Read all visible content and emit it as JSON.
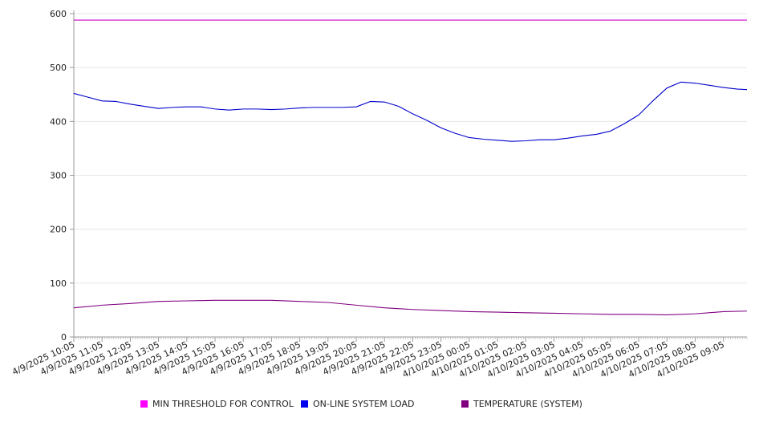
{
  "chart_data": {
    "type": "line",
    "title": "",
    "xlabel": "",
    "ylabel": "",
    "ylim": [
      0,
      600
    ],
    "yticks": [
      0,
      100,
      200,
      300,
      400,
      500,
      600
    ],
    "grid": true,
    "legend_position": "bottom",
    "x_tick_labels": [
      "4/9/2025 10:05",
      "4/9/2025 11:05",
      "4/9/2025 12:05",
      "4/9/2025 13:05",
      "4/9/2025 14:05",
      "4/9/2025 15:05",
      "4/9/2025 16:05",
      "4/9/2025 17:05",
      "4/9/2025 18:05",
      "4/9/2025 19:05",
      "4/9/2025 20:05",
      "4/9/2025 21:05",
      "4/9/2025 22:05",
      "4/9/2025 23:05",
      "4/10/2025 00:05",
      "4/10/2025 01:05",
      "4/10/2025 02:05",
      "4/10/2025 03:05",
      "4/10/2025 04:05",
      "4/10/2025 05:05",
      "4/10/2025 06:05",
      "4/10/2025 07:05",
      "4/10/2025 08:05",
      "4/10/2025 09:05"
    ],
    "x_time_range": [
      "4/9/2025 10:05",
      "4/10/2025 09:55"
    ],
    "series": [
      {
        "name": "MIN THRESHOLD FOR CONTROL",
        "color": "#cc00cc",
        "points": [
          [
            "4/9/2025 10:05",
            588
          ],
          [
            "4/10/2025 09:55",
            588
          ]
        ]
      },
      {
        "name": "ON-LINE SYSTEM LOAD",
        "color": "#0000cc",
        "points": [
          [
            "4/9/2025 10:05",
            452
          ],
          [
            "4/9/2025 10:35",
            445
          ],
          [
            "4/9/2025 11:05",
            438
          ],
          [
            "4/9/2025 11:35",
            437
          ],
          [
            "4/9/2025 12:05",
            432
          ],
          [
            "4/9/2025 12:35",
            428
          ],
          [
            "4/9/2025 13:05",
            424
          ],
          [
            "4/9/2025 13:35",
            426
          ],
          [
            "4/9/2025 14:05",
            427
          ],
          [
            "4/9/2025 14:35",
            427
          ],
          [
            "4/9/2025 15:05",
            423
          ],
          [
            "4/9/2025 15:35",
            421
          ],
          [
            "4/9/2025 16:05",
            423
          ],
          [
            "4/9/2025 16:35",
            423
          ],
          [
            "4/9/2025 17:05",
            422
          ],
          [
            "4/9/2025 17:35",
            423
          ],
          [
            "4/9/2025 18:05",
            425
          ],
          [
            "4/9/2025 18:35",
            426
          ],
          [
            "4/9/2025 19:05",
            426
          ],
          [
            "4/9/2025 19:35",
            426
          ],
          [
            "4/9/2025 20:05",
            427
          ],
          [
            "4/9/2025 20:35",
            437
          ],
          [
            "4/9/2025 21:05",
            436
          ],
          [
            "4/9/2025 21:35",
            428
          ],
          [
            "4/9/2025 22:05",
            414
          ],
          [
            "4/9/2025 22:35",
            402
          ],
          [
            "4/9/2025 23:05",
            388
          ],
          [
            "4/9/2025 23:35",
            378
          ],
          [
            "4/10/2025 00:05",
            370
          ],
          [
            "4/10/2025 00:35",
            367
          ],
          [
            "4/10/2025 01:05",
            365
          ],
          [
            "4/10/2025 01:35",
            363
          ],
          [
            "4/10/2025 02:05",
            364
          ],
          [
            "4/10/2025 02:35",
            366
          ],
          [
            "4/10/2025 03:05",
            366
          ],
          [
            "4/10/2025 03:35",
            369
          ],
          [
            "4/10/2025 04:05",
            373
          ],
          [
            "4/10/2025 04:35",
            376
          ],
          [
            "4/10/2025 05:05",
            382
          ],
          [
            "4/10/2025 05:35",
            396
          ],
          [
            "4/10/2025 06:05",
            412
          ],
          [
            "4/10/2025 06:35",
            438
          ],
          [
            "4/10/2025 07:05",
            462
          ],
          [
            "4/10/2025 07:35",
            473
          ],
          [
            "4/10/2025 08:05",
            471
          ],
          [
            "4/10/2025 08:35",
            467
          ],
          [
            "4/10/2025 09:05",
            463
          ],
          [
            "4/10/2025 09:35",
            460
          ],
          [
            "4/10/2025 09:55",
            459
          ]
        ]
      },
      {
        "name": "TEMPERATURE (SYSTEM)",
        "color": "#800080",
        "points": [
          [
            "4/9/2025 10:05",
            54
          ],
          [
            "4/9/2025 11:05",
            59
          ],
          [
            "4/9/2025 12:05",
            62
          ],
          [
            "4/9/2025 13:05",
            66
          ],
          [
            "4/9/2025 14:05",
            67
          ],
          [
            "4/9/2025 15:05",
            68
          ],
          [
            "4/9/2025 16:05",
            68
          ],
          [
            "4/9/2025 17:05",
            68
          ],
          [
            "4/9/2025 18:05",
            66
          ],
          [
            "4/9/2025 19:05",
            64
          ],
          [
            "4/9/2025 20:05",
            59
          ],
          [
            "4/9/2025 21:05",
            54
          ],
          [
            "4/9/2025 22:05",
            51
          ],
          [
            "4/9/2025 23:05",
            49
          ],
          [
            "4/10/2025 00:05",
            47
          ],
          [
            "4/10/2025 01:05",
            46
          ],
          [
            "4/10/2025 02:05",
            45
          ],
          [
            "4/10/2025 03:05",
            44
          ],
          [
            "4/10/2025 04:05",
            43
          ],
          [
            "4/10/2025 05:05",
            42
          ],
          [
            "4/10/2025 06:05",
            42
          ],
          [
            "4/10/2025 07:05",
            41
          ],
          [
            "4/10/2025 08:05",
            43
          ],
          [
            "4/10/2025 09:05",
            47
          ],
          [
            "4/10/2025 09:55",
            48
          ]
        ]
      }
    ]
  },
  "legend": {
    "items": [
      {
        "label": "MIN THRESHOLD FOR CONTROL",
        "color": "#ff00ff"
      },
      {
        "label": "ON-LINE SYSTEM LOAD",
        "color": "#0000ee"
      },
      {
        "label": "TEMPERATURE (SYSTEM)",
        "color": "#800080"
      }
    ]
  }
}
